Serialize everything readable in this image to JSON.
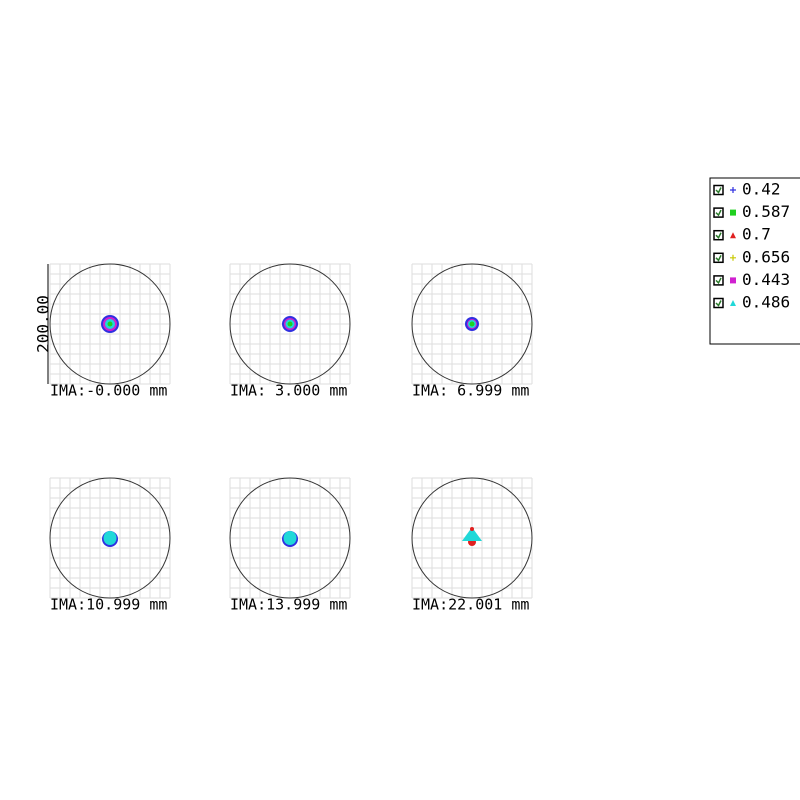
{
  "chart_data": {
    "type": "spot",
    "scale_label": "200.00",
    "fields": [
      "IMA:-0.000 mm",
      "IMA: 3.000 mm",
      "IMA: 6.999 mm",
      "IMA:10.999 mm",
      "IMA:13.999 mm",
      "IMA:22.001 mm"
    ],
    "series": [
      {
        "name": "0.42",
        "color": "#3030e0",
        "marker": "plus"
      },
      {
        "name": "0.587",
        "color": "#20d020",
        "marker": "square"
      },
      {
        "name": "0.7",
        "color": "#e02020",
        "marker": "triangle"
      },
      {
        "name": "0.656",
        "color": "#c8c800",
        "marker": "plus"
      },
      {
        "name": "0.443",
        "color": "#d020d0",
        "marker": "square"
      },
      {
        "name": "0.486",
        "color": "#20d8d8",
        "marker": "triangle"
      }
    ],
    "grid": true
  }
}
